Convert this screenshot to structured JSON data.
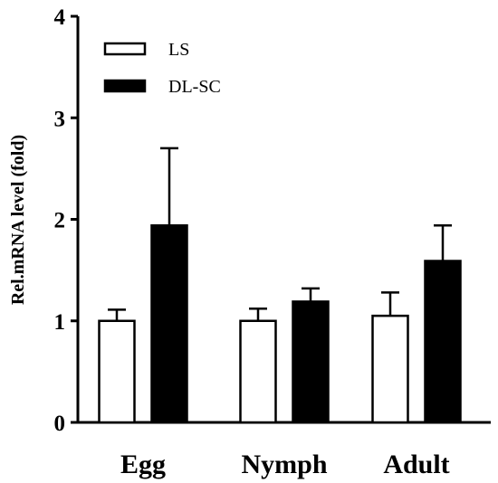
{
  "chart_data": {
    "type": "bar",
    "title": "",
    "xlabel": "",
    "ylabel": "Rel.mRNA level (fold)",
    "ylim": [
      0,
      4
    ],
    "yticks": [
      0,
      1,
      2,
      3,
      4
    ],
    "categories": [
      "Egg",
      "Nymph",
      "Adult"
    ],
    "series": [
      {
        "name": "LS",
        "color": "#ffffff",
        "values": [
          1.0,
          1.0,
          1.05
        ],
        "errors": [
          0.11,
          0.12,
          0.23
        ]
      },
      {
        "name": "DL-SC",
        "color": "#000000",
        "values": [
          1.94,
          1.19,
          1.59
        ],
        "errors": [
          0.76,
          0.13,
          0.35
        ]
      }
    ],
    "legend_position": "top-left",
    "grid": false
  }
}
